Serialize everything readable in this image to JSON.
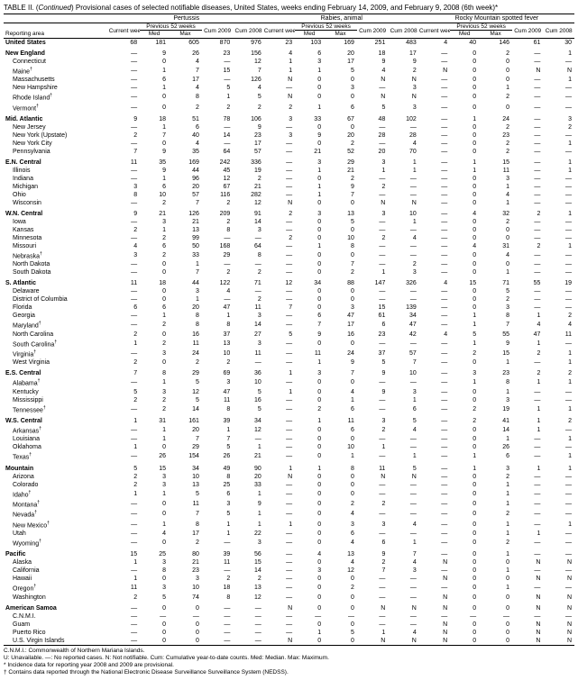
{
  "title_prefix": "TABLE II. (",
  "title_italic": "Continued",
  "title_suffix": ") Provisional cases of selected notifiable diseases, United States, weeks ending February 14, 2009, and February 9, 2008 (6th week)*",
  "disease_groups": [
    "Pertussis",
    "Rabies, animal",
    "Rocky Mountain spotted fever"
  ],
  "sub_headers": {
    "current": "Current week",
    "prev": "Previous 52 weeks",
    "med": "Med",
    "max": "Max",
    "cum09": "Cum 2009",
    "cum08": "Cum 2008",
    "reporting": "Reporting area"
  },
  "footer_lines": [
    "C.N.M.I.: Commonwealth of Northern Mariana Islands.",
    "U: Unavailable.    —: No reported cases.    N: Not notifiable.    Cum: Cumulative year-to-date counts.    Med: Median.    Max: Maximum.",
    "* Incidence data for reporting year 2008 and 2009 are provisional.",
    "† Contains data reported through the National Electronic Disease Surveillance Surveillance System (NEDSS)."
  ],
  "rows": [
    {
      "b": 1,
      "l": "United States",
      "v": [
        "68",
        "181",
        "605",
        "870",
        "976",
        "23",
        "103",
        "169",
        "251",
        "483",
        "4",
        "40",
        "146",
        "61",
        "30"
      ]
    },
    {
      "b": 1,
      "l": "New England",
      "v": [
        "—",
        "9",
        "26",
        "23",
        "156",
        "4",
        "6",
        "20",
        "18",
        "17",
        "—",
        "0",
        "2",
        "—",
        "1"
      ]
    },
    {
      "l": "Connecticut",
      "v": [
        "—",
        "0",
        "4",
        "—",
        "12",
        "1",
        "3",
        "17",
        "9",
        "9",
        "—",
        "0",
        "0",
        "—",
        "—"
      ]
    },
    {
      "l": "Maine†",
      "v": [
        "—",
        "1",
        "7",
        "15",
        "7",
        "1",
        "1",
        "5",
        "4",
        "2",
        "N",
        "0",
        "0",
        "N",
        "N"
      ]
    },
    {
      "l": "Massachusetts",
      "v": [
        "—",
        "6",
        "17",
        "—",
        "126",
        "N",
        "0",
        "0",
        "N",
        "N",
        "—",
        "0",
        "0",
        "—",
        "1"
      ]
    },
    {
      "l": "New Hampshire",
      "v": [
        "—",
        "1",
        "4",
        "5",
        "4",
        "—",
        "0",
        "3",
        "—",
        "3",
        "—",
        "0",
        "1",
        "—",
        "—"
      ]
    },
    {
      "l": "Rhode Island†",
      "v": [
        "—",
        "0",
        "8",
        "1",
        "5",
        "N",
        "0",
        "0",
        "N",
        "N",
        "—",
        "0",
        "2",
        "—",
        "—"
      ]
    },
    {
      "l": "Vermont†",
      "v": [
        "—",
        "0",
        "2",
        "2",
        "2",
        "2",
        "1",
        "6",
        "5",
        "3",
        "—",
        "0",
        "0",
        "—",
        "—"
      ]
    },
    {
      "b": 1,
      "l": "Mid. Atlantic",
      "v": [
        "9",
        "18",
        "51",
        "78",
        "106",
        "3",
        "33",
        "67",
        "48",
        "102",
        "—",
        "1",
        "24",
        "—",
        "3"
      ]
    },
    {
      "l": "New Jersey",
      "v": [
        "—",
        "1",
        "6",
        "—",
        "9",
        "—",
        "0",
        "0",
        "—",
        "—",
        "—",
        "0",
        "2",
        "—",
        "2"
      ]
    },
    {
      "l": "New York (Upstate)",
      "v": [
        "2",
        "7",
        "40",
        "14",
        "23",
        "3",
        "9",
        "20",
        "28",
        "28",
        "—",
        "0",
        "23",
        "—",
        "—"
      ]
    },
    {
      "l": "New York City",
      "v": [
        "—",
        "0",
        "4",
        "—",
        "17",
        "—",
        "0",
        "2",
        "—",
        "4",
        "—",
        "0",
        "2",
        "—",
        "1"
      ]
    },
    {
      "l": "Pennsylvania",
      "v": [
        "7",
        "9",
        "35",
        "64",
        "57",
        "—",
        "21",
        "52",
        "20",
        "70",
        "—",
        "0",
        "2",
        "—",
        "—"
      ]
    },
    {
      "b": 1,
      "l": "E.N. Central",
      "v": [
        "11",
        "35",
        "169",
        "242",
        "336",
        "—",
        "3",
        "29",
        "3",
        "1",
        "—",
        "1",
        "15",
        "—",
        "1"
      ]
    },
    {
      "l": "Illinois",
      "v": [
        "—",
        "9",
        "44",
        "45",
        "19",
        "—",
        "1",
        "21",
        "1",
        "1",
        "—",
        "1",
        "11",
        "—",
        "1"
      ]
    },
    {
      "l": "Indiana",
      "v": [
        "—",
        "1",
        "96",
        "12",
        "2",
        "—",
        "0",
        "2",
        "—",
        "—",
        "—",
        "0",
        "3",
        "—",
        "—"
      ]
    },
    {
      "l": "Michigan",
      "v": [
        "3",
        "6",
        "20",
        "67",
        "21",
        "—",
        "1",
        "9",
        "2",
        "—",
        "—",
        "0",
        "1",
        "—",
        "—"
      ]
    },
    {
      "l": "Ohio",
      "v": [
        "8",
        "10",
        "57",
        "116",
        "282",
        "—",
        "1",
        "7",
        "—",
        "—",
        "—",
        "0",
        "4",
        "—",
        "—"
      ]
    },
    {
      "l": "Wisconsin",
      "v": [
        "—",
        "2",
        "7",
        "2",
        "12",
        "N",
        "0",
        "0",
        "N",
        "N",
        "—",
        "0",
        "1",
        "—",
        "—"
      ]
    },
    {
      "b": 1,
      "l": "W.N. Central",
      "v": [
        "9",
        "21",
        "126",
        "209",
        "91",
        "2",
        "3",
        "13",
        "3",
        "10",
        "—",
        "4",
        "32",
        "2",
        "1"
      ]
    },
    {
      "l": "Iowa",
      "v": [
        "—",
        "3",
        "21",
        "2",
        "14",
        "—",
        "0",
        "5",
        "—",
        "1",
        "—",
        "0",
        "2",
        "—",
        "—"
      ]
    },
    {
      "l": "Kansas",
      "v": [
        "2",
        "1",
        "13",
        "8",
        "3",
        "—",
        "0",
        "0",
        "—",
        "—",
        "—",
        "0",
        "0",
        "—",
        "—"
      ]
    },
    {
      "l": "Minnesota",
      "v": [
        "—",
        "2",
        "99",
        "—",
        "—",
        "2",
        "0",
        "10",
        "2",
        "4",
        "—",
        "0",
        "0",
        "—",
        "—"
      ]
    },
    {
      "l": "Missouri",
      "v": [
        "4",
        "6",
        "50",
        "168",
        "64",
        "—",
        "1",
        "8",
        "—",
        "—",
        "—",
        "4",
        "31",
        "2",
        "1"
      ]
    },
    {
      "l": "Nebraska†",
      "v": [
        "3",
        "2",
        "33",
        "29",
        "8",
        "—",
        "0",
        "0",
        "—",
        "—",
        "—",
        "0",
        "4",
        "—",
        "—"
      ]
    },
    {
      "l": "North Dakota",
      "v": [
        "—",
        "0",
        "1",
        "—",
        "—",
        "—",
        "0",
        "7",
        "—",
        "2",
        "—",
        "0",
        "0",
        "—",
        "—"
      ]
    },
    {
      "l": "South Dakota",
      "v": [
        "—",
        "0",
        "7",
        "2",
        "2",
        "—",
        "0",
        "2",
        "1",
        "3",
        "—",
        "0",
        "1",
        "—",
        "—"
      ]
    },
    {
      "b": 1,
      "l": "S. Atlantic",
      "v": [
        "11",
        "18",
        "44",
        "122",
        "71",
        "12",
        "34",
        "88",
        "147",
        "326",
        "4",
        "15",
        "71",
        "55",
        "19"
      ]
    },
    {
      "l": "Delaware",
      "v": [
        "—",
        "0",
        "3",
        "4",
        "—",
        "—",
        "0",
        "0",
        "—",
        "—",
        "—",
        "0",
        "5",
        "—",
        "—"
      ]
    },
    {
      "l": "District of Columbia",
      "v": [
        "—",
        "0",
        "1",
        "—",
        "2",
        "—",
        "0",
        "0",
        "—",
        "—",
        "—",
        "0",
        "2",
        "—",
        "—"
      ]
    },
    {
      "l": "Florida",
      "v": [
        "6",
        "6",
        "20",
        "47",
        "11",
        "7",
        "0",
        "3",
        "15",
        "139",
        "—",
        "0",
        "3",
        "—",
        "—"
      ]
    },
    {
      "l": "Georgia",
      "v": [
        "—",
        "1",
        "8",
        "1",
        "3",
        "—",
        "6",
        "47",
        "61",
        "34",
        "—",
        "1",
        "8",
        "1",
        "2"
      ]
    },
    {
      "l": "Maryland†",
      "v": [
        "—",
        "2",
        "8",
        "8",
        "14",
        "—",
        "7",
        "17",
        "6",
        "47",
        "—",
        "1",
        "7",
        "4",
        "4"
      ]
    },
    {
      "l": "North Carolina",
      "v": [
        "2",
        "0",
        "16",
        "37",
        "27",
        "5",
        "9",
        "16",
        "23",
        "42",
        "4",
        "5",
        "55",
        "47",
        "11"
      ]
    },
    {
      "l": "South Carolina†",
      "v": [
        "1",
        "2",
        "11",
        "13",
        "3",
        "—",
        "0",
        "0",
        "—",
        "—",
        "—",
        "1",
        "9",
        "1",
        "—"
      ]
    },
    {
      "l": "Virginia†",
      "v": [
        "—",
        "3",
        "24",
        "10",
        "11",
        "—",
        "11",
        "24",
        "37",
        "57",
        "—",
        "2",
        "15",
        "2",
        "1"
      ]
    },
    {
      "l": "West Virginia",
      "v": [
        "2",
        "0",
        "2",
        "2",
        "—",
        "—",
        "1",
        "9",
        "5",
        "7",
        "—",
        "0",
        "1",
        "—",
        "1"
      ]
    },
    {
      "b": 1,
      "l": "E.S. Central",
      "v": [
        "7",
        "8",
        "29",
        "69",
        "36",
        "1",
        "3",
        "7",
        "9",
        "10",
        "—",
        "3",
        "23",
        "2",
        "2"
      ]
    },
    {
      "l": "Alabama†",
      "v": [
        "—",
        "1",
        "5",
        "3",
        "10",
        "—",
        "0",
        "0",
        "—",
        "—",
        "—",
        "1",
        "8",
        "1",
        "1"
      ]
    },
    {
      "l": "Kentucky",
      "v": [
        "5",
        "3",
        "12",
        "47",
        "5",
        "1",
        "0",
        "4",
        "9",
        "3",
        "—",
        "0",
        "1",
        "—",
        "—"
      ]
    },
    {
      "l": "Mississippi",
      "v": [
        "2",
        "2",
        "5",
        "11",
        "16",
        "—",
        "0",
        "1",
        "—",
        "1",
        "—",
        "0",
        "3",
        "—",
        "—"
      ]
    },
    {
      "l": "Tennessee†",
      "v": [
        "—",
        "2",
        "14",
        "8",
        "5",
        "—",
        "2",
        "6",
        "—",
        "6",
        "—",
        "2",
        "19",
        "1",
        "1"
      ]
    },
    {
      "b": 1,
      "l": "W.S. Central",
      "v": [
        "1",
        "31",
        "161",
        "39",
        "34",
        "—",
        "1",
        "11",
        "3",
        "5",
        "—",
        "2",
        "41",
        "1",
        "2"
      ]
    },
    {
      "l": "Arkansas†",
      "v": [
        "—",
        "1",
        "20",
        "1",
        "12",
        "—",
        "0",
        "6",
        "2",
        "4",
        "—",
        "0",
        "14",
        "1",
        "—"
      ]
    },
    {
      "l": "Louisiana",
      "v": [
        "—",
        "1",
        "7",
        "7",
        "—",
        "—",
        "0",
        "0",
        "—",
        "—",
        "—",
        "0",
        "1",
        "—",
        "1"
      ]
    },
    {
      "l": "Oklahoma",
      "v": [
        "1",
        "0",
        "29",
        "5",
        "1",
        "—",
        "0",
        "10",
        "1",
        "—",
        "—",
        "0",
        "26",
        "—",
        "—"
      ]
    },
    {
      "l": "Texas†",
      "v": [
        "—",
        "26",
        "154",
        "26",
        "21",
        "—",
        "0",
        "1",
        "—",
        "1",
        "—",
        "1",
        "6",
        "—",
        "1"
      ]
    },
    {
      "b": 1,
      "l": "Mountain",
      "v": [
        "5",
        "15",
        "34",
        "49",
        "90",
        "1",
        "1",
        "8",
        "11",
        "5",
        "—",
        "1",
        "3",
        "1",
        "1"
      ]
    },
    {
      "l": "Arizona",
      "v": [
        "2",
        "3",
        "10",
        "8",
        "20",
        "N",
        "0",
        "0",
        "N",
        "N",
        "—",
        "0",
        "2",
        "—",
        "—"
      ]
    },
    {
      "l": "Colorado",
      "v": [
        "2",
        "3",
        "13",
        "25",
        "33",
        "—",
        "0",
        "0",
        "—",
        "—",
        "—",
        "0",
        "1",
        "—",
        "—"
      ]
    },
    {
      "l": "Idaho†",
      "v": [
        "1",
        "1",
        "5",
        "6",
        "1",
        "—",
        "0",
        "0",
        "—",
        "—",
        "—",
        "0",
        "1",
        "—",
        "—"
      ]
    },
    {
      "l": "Montana†",
      "v": [
        "—",
        "0",
        "11",
        "3",
        "9",
        "—",
        "0",
        "2",
        "2",
        "—",
        "—",
        "0",
        "1",
        "—",
        "—"
      ]
    },
    {
      "l": "Nevada†",
      "v": [
        "—",
        "0",
        "7",
        "5",
        "1",
        "—",
        "0",
        "4",
        "—",
        "—",
        "—",
        "0",
        "2",
        "—",
        "—"
      ]
    },
    {
      "l": "New Mexico†",
      "v": [
        "—",
        "1",
        "8",
        "1",
        "1",
        "1",
        "0",
        "3",
        "3",
        "4",
        "—",
        "0",
        "1",
        "—",
        "1"
      ]
    },
    {
      "l": "Utah",
      "v": [
        "—",
        "4",
        "17",
        "1",
        "22",
        "—",
        "0",
        "6",
        "—",
        "—",
        "—",
        "0",
        "1",
        "1",
        "—"
      ]
    },
    {
      "l": "Wyoming†",
      "v": [
        "—",
        "0",
        "2",
        "—",
        "3",
        "—",
        "0",
        "4",
        "6",
        "1",
        "—",
        "0",
        "2",
        "—",
        "—"
      ]
    },
    {
      "b": 1,
      "l": "Pacific",
      "v": [
        "15",
        "25",
        "80",
        "39",
        "56",
        "—",
        "4",
        "13",
        "9",
        "7",
        "—",
        "0",
        "1",
        "—",
        "—"
      ]
    },
    {
      "l": "Alaska",
      "v": [
        "1",
        "3",
        "21",
        "11",
        "15",
        "—",
        "0",
        "4",
        "2",
        "4",
        "N",
        "0",
        "0",
        "N",
        "N"
      ]
    },
    {
      "l": "California",
      "v": [
        "—",
        "8",
        "23",
        "—",
        "14",
        "—",
        "3",
        "12",
        "7",
        "3",
        "—",
        "0",
        "1",
        "—",
        "—"
      ]
    },
    {
      "l": "Hawaii",
      "v": [
        "1",
        "0",
        "3",
        "2",
        "2",
        "—",
        "0",
        "0",
        "—",
        "—",
        "N",
        "0",
        "0",
        "N",
        "N"
      ]
    },
    {
      "l": "Oregon†",
      "v": [
        "11",
        "3",
        "10",
        "18",
        "13",
        "—",
        "0",
        "2",
        "—",
        "—",
        "—",
        "0",
        "1",
        "—",
        "—"
      ]
    },
    {
      "l": "Washington",
      "v": [
        "2",
        "5",
        "74",
        "8",
        "12",
        "—",
        "0",
        "0",
        "—",
        "—",
        "N",
        "0",
        "0",
        "N",
        "N"
      ]
    },
    {
      "b": 1,
      "l": "American Samoa",
      "v": [
        "—",
        "0",
        "0",
        "—",
        "—",
        "N",
        "0",
        "0",
        "N",
        "N",
        "N",
        "0",
        "0",
        "N",
        "N"
      ]
    },
    {
      "l": "C.N.M.I.",
      "v": [
        "—",
        "—",
        "—",
        "—",
        "—",
        "—",
        "—",
        "—",
        "—",
        "—",
        "—",
        "—",
        "—",
        "—",
        "—"
      ]
    },
    {
      "l": "Guam",
      "v": [
        "—",
        "0",
        "0",
        "—",
        "—",
        "—",
        "0",
        "0",
        "—",
        "—",
        "N",
        "0",
        "0",
        "N",
        "N"
      ]
    },
    {
      "l": "Puerto Rico",
      "v": [
        "—",
        "0",
        "0",
        "—",
        "—",
        "—",
        "1",
        "5",
        "1",
        "4",
        "N",
        "0",
        "0",
        "N",
        "N"
      ]
    },
    {
      "l": "U.S. Virgin Islands",
      "v": [
        "—",
        "0",
        "0",
        "—",
        "—",
        "N",
        "0",
        "0",
        "N",
        "N",
        "N",
        "0",
        "0",
        "N",
        "N"
      ]
    }
  ]
}
